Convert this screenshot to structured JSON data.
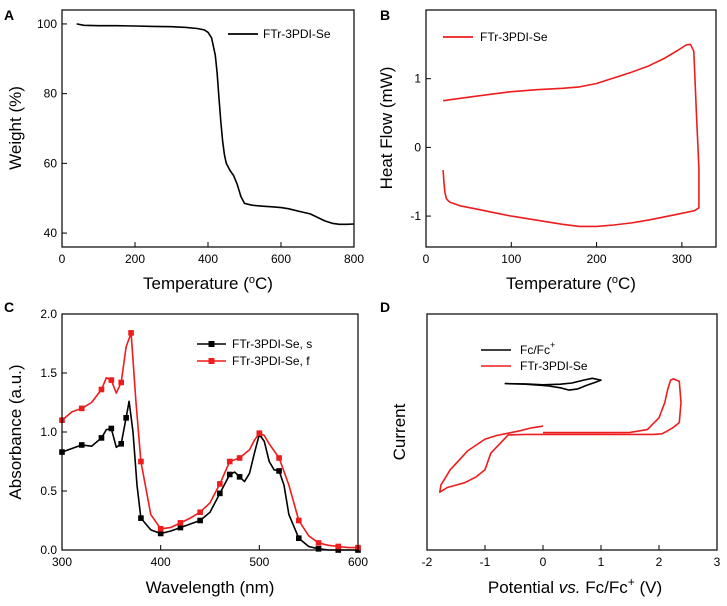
{
  "colors": {
    "black": "#000000",
    "red": "#ee1c1c"
  },
  "chart_data": [
    {
      "panel": "A",
      "type": "line",
      "xlabel": "Temperature (°C)",
      "ylabel": "Weight (%)",
      "xlim": [
        0,
        800
      ],
      "ylim": [
        36,
        104
      ],
      "xticks": [
        0,
        200,
        400,
        600,
        800
      ],
      "yticks": [
        40,
        60,
        80,
        100
      ],
      "xtick_labels": [
        "0",
        "200",
        "400",
        "600",
        "800"
      ],
      "ytick_labels": [
        "40",
        "60",
        "80",
        "100"
      ],
      "legend_position": "top-right",
      "series": [
        {
          "name": "FTr-3PDI-Se",
          "color": "#000000",
          "markers": false,
          "x": [
            40,
            60,
            100,
            150,
            200,
            250,
            300,
            340,
            370,
            390,
            400,
            410,
            420,
            425,
            430,
            435,
            440,
            445,
            450,
            460,
            470,
            480,
            490,
            500,
            520,
            550,
            580,
            600,
            620,
            650,
            680,
            700,
            720,
            740,
            760,
            780,
            800
          ],
          "y": [
            100,
            99.6,
            99.5,
            99.5,
            99.4,
            99.3,
            99.2,
            99.0,
            98.7,
            98.3,
            97.6,
            96.0,
            91.0,
            86.0,
            79.0,
            72.0,
            66.5,
            62.5,
            60.0,
            58.0,
            56.5,
            54.0,
            50.5,
            48.5,
            48.0,
            47.7,
            47.5,
            47.3,
            47.0,
            46.2,
            45.5,
            44.5,
            43.5,
            42.8,
            42.5,
            42.5,
            42.6
          ]
        }
      ]
    },
    {
      "panel": "B",
      "type": "line",
      "xlabel": "Temperature (°C)",
      "ylabel": "Heat Flow (mW)",
      "xlim": [
        0,
        340
      ],
      "ylim": [
        -1.45,
        2.0
      ],
      "xticks": [
        0,
        100,
        200,
        300
      ],
      "yticks": [
        -1,
        0,
        1
      ],
      "xtick_labels": [
        "0",
        "100",
        "200",
        "300"
      ],
      "ytick_labels": [
        "-1",
        "0",
        "1"
      ],
      "legend_position": "top-left",
      "series": [
        {
          "name": "FTr-3PDI-Se",
          "color": "#ee1c1c",
          "markers": false,
          "x": [
            20,
            50,
            80,
            100,
            130,
            160,
            180,
            200,
            220,
            240,
            260,
            280,
            295,
            305,
            310,
            314,
            317,
            320,
            320,
            315,
            300,
            280,
            260,
            240,
            220,
            200,
            180,
            160,
            140,
            120,
            100,
            80,
            60,
            40,
            28,
            24,
            22,
            21,
            20
          ],
          "y": [
            0.68,
            0.73,
            0.78,
            0.81,
            0.84,
            0.86,
            0.88,
            0.93,
            1.01,
            1.09,
            1.18,
            1.3,
            1.41,
            1.49,
            1.5,
            1.4,
            0.5,
            -0.3,
            -0.88,
            -0.92,
            -0.96,
            -1.01,
            -1.06,
            -1.1,
            -1.13,
            -1.15,
            -1.15,
            -1.12,
            -1.08,
            -1.04,
            -1.0,
            -0.95,
            -0.9,
            -0.85,
            -0.8,
            -0.75,
            -0.65,
            -0.5,
            -0.33
          ]
        }
      ]
    },
    {
      "panel": "C",
      "type": "line",
      "xlabel": "Wavelength (nm)",
      "ylabel": "Absorbance (a.u.)",
      "xlim": [
        300,
        600
      ],
      "ylim": [
        0,
        2.0
      ],
      "xticks": [
        300,
        400,
        500,
        600
      ],
      "yticks": [
        0,
        0.5,
        1.0,
        1.5,
        2.0
      ],
      "xtick_labels": [
        "300",
        "400",
        "500",
        "600"
      ],
      "ytick_labels": [
        "0.0",
        "0.5",
        "1.0",
        "1.5",
        "2.0"
      ],
      "legend_position": "top-right",
      "series": [
        {
          "name": "FTr-3PDI-Se, s",
          "color": "#000000",
          "markers": true,
          "x": [
            300,
            310,
            320,
            330,
            340,
            345,
            350,
            355,
            360,
            365,
            368,
            372,
            376,
            380,
            390,
            400,
            410,
            420,
            430,
            440,
            450,
            460,
            470,
            475,
            480,
            485,
            490,
            495,
            500,
            505,
            510,
            515,
            520,
            525,
            530,
            540,
            550,
            560,
            570,
            580,
            590,
            600
          ],
          "y": [
            0.83,
            0.86,
            0.89,
            0.88,
            0.95,
            1.02,
            1.03,
            0.87,
            0.9,
            1.12,
            1.26,
            1.0,
            0.55,
            0.27,
            0.17,
            0.14,
            0.16,
            0.19,
            0.22,
            0.25,
            0.32,
            0.48,
            0.64,
            0.66,
            0.62,
            0.58,
            0.65,
            0.82,
            0.98,
            0.92,
            0.75,
            0.68,
            0.67,
            0.55,
            0.3,
            0.1,
            0.03,
            0.01,
            0.0,
            0.0,
            0.0,
            0.0
          ],
          "marker_x": [
            300,
            320,
            340,
            350,
            360,
            365,
            380,
            400,
            420,
            440,
            460,
            470,
            480,
            500,
            520,
            540,
            560,
            580,
            600
          ]
        },
        {
          "name": "FTr-3PDI-Se, f",
          "color": "#ee1c1c",
          "markers": true,
          "x": [
            300,
            310,
            320,
            330,
            340,
            345,
            350,
            355,
            360,
            365,
            370,
            375,
            380,
            390,
            400,
            410,
            420,
            430,
            440,
            450,
            460,
            470,
            480,
            490,
            495,
            500,
            505,
            510,
            520,
            530,
            540,
            550,
            560,
            570,
            580,
            590,
            600
          ],
          "y": [
            1.1,
            1.17,
            1.2,
            1.25,
            1.36,
            1.46,
            1.44,
            1.33,
            1.42,
            1.72,
            1.84,
            1.25,
            0.75,
            0.3,
            0.18,
            0.19,
            0.23,
            0.27,
            0.32,
            0.4,
            0.56,
            0.75,
            0.78,
            0.85,
            0.93,
            0.99,
            0.97,
            0.9,
            0.78,
            0.55,
            0.25,
            0.12,
            0.06,
            0.04,
            0.03,
            0.02,
            0.02
          ],
          "marker_x": [
            300,
            320,
            340,
            350,
            360,
            370,
            380,
            400,
            420,
            440,
            460,
            470,
            480,
            500,
            520,
            540,
            560,
            580,
            600
          ]
        }
      ]
    },
    {
      "panel": "D",
      "type": "line",
      "xlabel": "Potential vs. Fc/Fc+ (V)",
      "ylabel": "Current",
      "xlim": [
        -2,
        3
      ],
      "ylim": [
        -10,
        10
      ],
      "xticks": [
        -2,
        -1,
        0,
        1,
        2,
        3
      ],
      "yticks": [],
      "xtick_labels": [
        "-2",
        "-1",
        "0",
        "1",
        "2",
        "3"
      ],
      "ytick_labels": [],
      "legend_position": "top-left",
      "series": [
        {
          "name": "Fc/Fc+",
          "color": "#000000",
          "markers": false,
          "x": [
            0.0,
            0.3,
            0.5,
            0.7,
            0.85,
            1.0,
            0.9,
            0.75,
            0.6,
            0.45,
            0.3,
            0.1,
            0.0,
            -0.3,
            -0.65,
            -0.3,
            0.0
          ],
          "y": [
            4.0,
            4.05,
            4.15,
            4.4,
            4.55,
            4.4,
            4.2,
            3.95,
            3.65,
            3.55,
            3.75,
            3.9,
            3.95,
            4.05,
            4.1,
            4.08,
            4.0
          ]
        },
        {
          "name": "FTr-3PDI-Se",
          "color": "#ee1c1c",
          "markers": false,
          "x": [
            0.0,
            0.5,
            1.0,
            1.5,
            1.8,
            2.0,
            2.1,
            2.15,
            2.2,
            2.25,
            2.35,
            2.38,
            2.35,
            2.25,
            2.15,
            2.05,
            1.9,
            1.7,
            1.5,
            1.3,
            1.0,
            0.5,
            0.0,
            -0.3,
            -0.6,
            -0.9,
            -1.0,
            -1.15,
            -1.35,
            -1.5,
            -1.65,
            -1.78,
            -1.76,
            -1.6,
            -1.3,
            -1.0,
            -0.8,
            -0.6,
            -0.4,
            -0.2,
            0.0
          ],
          "y": [
            -0.05,
            -0.05,
            -0.05,
            -0.03,
            0.2,
            1.2,
            2.5,
            3.6,
            4.4,
            4.5,
            4.3,
            2.5,
            0.8,
            0.4,
            0.1,
            -0.15,
            -0.2,
            -0.2,
            -0.2,
            -0.2,
            -0.2,
            -0.2,
            -0.2,
            -0.2,
            -0.25,
            -1.8,
            -3.2,
            -3.8,
            -4.3,
            -4.5,
            -4.7,
            -5.1,
            -4.5,
            -3.2,
            -1.6,
            -0.6,
            -0.3,
            -0.1,
            0.1,
            0.35,
            0.5
          ]
        }
      ]
    }
  ]
}
